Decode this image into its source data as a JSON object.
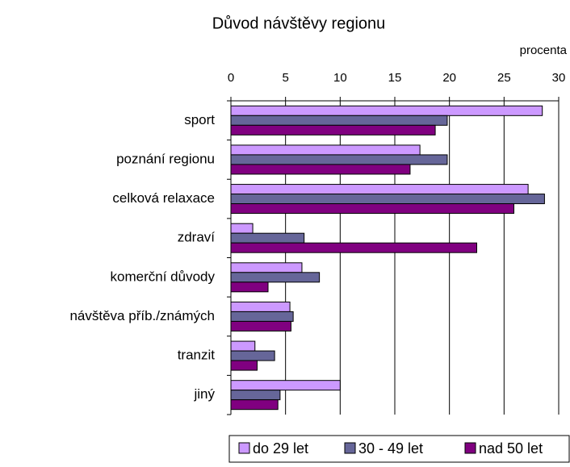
{
  "chart_data": {
    "type": "bar",
    "orientation": "horizontal",
    "title": "Důvod návštěvy regionu",
    "x_axis_label": "procenta",
    "categories": [
      "sport",
      "poznání regionu",
      "celková relaxace",
      "zdraví",
      "komerční důvody",
      "návštěva příb./známých",
      "tranzit",
      "jiný"
    ],
    "series": [
      {
        "name": "do 29 let",
        "color": "#cc99ff",
        "values": [
          28.5,
          17.3,
          27.2,
          2.0,
          6.5,
          5.4,
          2.2,
          10.0
        ]
      },
      {
        "name": "30 - 49 let",
        "color": "#666699",
        "values": [
          19.8,
          19.8,
          28.7,
          6.7,
          8.1,
          5.7,
          4.0,
          4.5
        ]
      },
      {
        "name": "nad 50 let",
        "color": "#800080",
        "values": [
          18.7,
          16.4,
          25.9,
          22.5,
          3.4,
          5.5,
          2.4,
          4.3
        ]
      }
    ],
    "xlim": [
      0,
      30
    ],
    "xticks": [
      0,
      5,
      10,
      15,
      20,
      25,
      30
    ],
    "grid": true,
    "legend": "bottom"
  }
}
